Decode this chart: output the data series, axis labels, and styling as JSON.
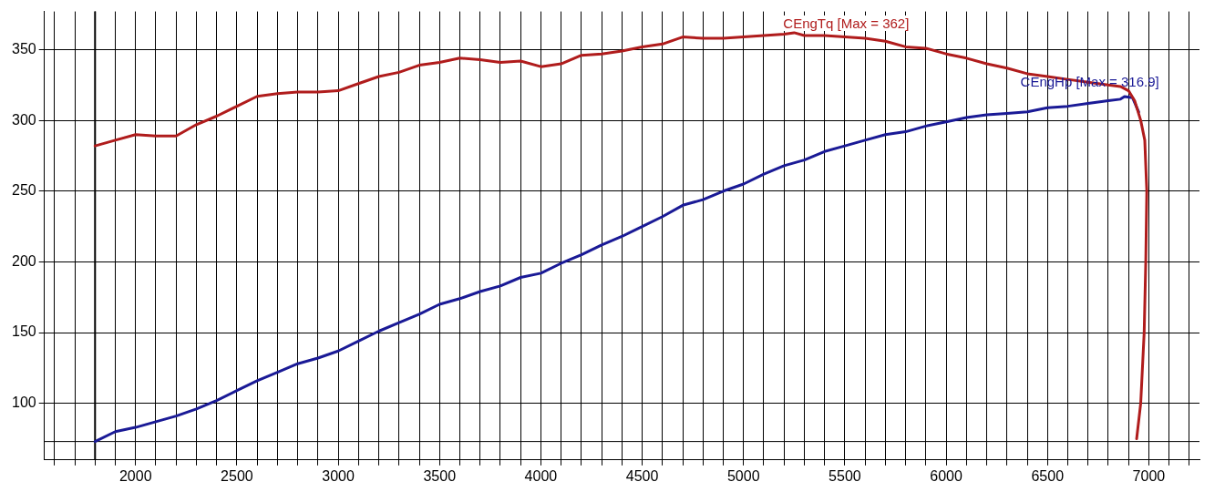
{
  "chart_data": {
    "type": "line",
    "xlim": [
      1550,
      7250
    ],
    "ylim": [
      60,
      377
    ],
    "xticks": [
      {
        "value": 1600,
        "label": null
      },
      {
        "value": 1700,
        "label": null
      },
      {
        "value": 1800,
        "label": null
      },
      {
        "value": 1900,
        "label": null
      },
      2000,
      {
        "value": 2100,
        "label": null
      },
      {
        "value": 2200,
        "label": null
      },
      {
        "value": 2300,
        "label": null
      },
      {
        "value": 2400,
        "label": null
      },
      2500,
      {
        "value": 2600,
        "label": null
      },
      {
        "value": 2700,
        "label": null
      },
      {
        "value": 2800,
        "label": null
      },
      {
        "value": 2900,
        "label": null
      },
      3000,
      {
        "value": 3100,
        "label": null
      },
      {
        "value": 3200,
        "label": null
      },
      {
        "value": 3300,
        "label": null
      },
      {
        "value": 3400,
        "label": null
      },
      3500,
      {
        "value": 3600,
        "label": null
      },
      {
        "value": 3700,
        "label": null
      },
      {
        "value": 3800,
        "label": null
      },
      {
        "value": 3900,
        "label": null
      },
      4000,
      {
        "value": 4100,
        "label": null
      },
      {
        "value": 4200,
        "label": null
      },
      {
        "value": 4300,
        "label": null
      },
      {
        "value": 4400,
        "label": null
      },
      4500,
      {
        "value": 4600,
        "label": null
      },
      {
        "value": 4700,
        "label": null
      },
      {
        "value": 4800,
        "label": null
      },
      {
        "value": 4900,
        "label": null
      },
      5000,
      {
        "value": 5100,
        "label": null
      },
      {
        "value": 5200,
        "label": null
      },
      {
        "value": 5300,
        "label": null
      },
      {
        "value": 5400,
        "label": null
      },
      5500,
      {
        "value": 5600,
        "label": null
      },
      {
        "value": 5700,
        "label": null
      },
      {
        "value": 5800,
        "label": null
      },
      {
        "value": 5900,
        "label": null
      },
      6000,
      {
        "value": 6100,
        "label": null
      },
      {
        "value": 6200,
        "label": null
      },
      {
        "value": 6300,
        "label": null
      },
      {
        "value": 6400,
        "label": null
      },
      6500,
      {
        "value": 6600,
        "label": null
      },
      {
        "value": 6700,
        "label": null
      },
      {
        "value": 6800,
        "label": null
      },
      {
        "value": 6900,
        "label": null
      },
      7000,
      {
        "value": 7100,
        "label": null
      },
      {
        "value": 7200,
        "label": null
      }
    ],
    "yticks": [
      100,
      150,
      200,
      250,
      300,
      350
    ],
    "grid": true,
    "legend": false,
    "marker": "none",
    "line_style": "solid",
    "ref_lines": [
      {
        "axis": "y",
        "value": 73,
        "color": "#000000"
      },
      {
        "axis": "x",
        "value": 1800,
        "color": "#000000"
      }
    ],
    "annotations": [
      {
        "text": "CEngTq [Max = 362]",
        "x": 5250,
        "y": 362
      },
      {
        "text": "CEngHp [Max = 316.9]",
        "x": 6880,
        "y": 316.9
      }
    ],
    "series": [
      {
        "color": "#b01c1c",
        "x": [
          1800,
          1900,
          2000,
          2100,
          2200,
          2300,
          2400,
          2500,
          2600,
          2700,
          2800,
          2900,
          3000,
          3100,
          3200,
          3300,
          3400,
          3500,
          3600,
          3700,
          3800,
          3900,
          4000,
          4100,
          4200,
          4300,
          4400,
          4500,
          4600,
          4700,
          4800,
          4900,
          5000,
          5100,
          5200,
          5250,
          5300,
          5400,
          5500,
          5600,
          5700,
          5800,
          5900,
          6000,
          6100,
          6200,
          6300,
          6400,
          6500,
          6600,
          6700,
          6800,
          6860,
          6900,
          6930,
          6960,
          6980,
          6990,
          6985,
          6977,
          6960,
          6940
        ],
        "values": [
          282,
          286,
          290,
          289,
          289,
          297,
          303,
          310,
          317,
          319,
          320,
          320,
          321,
          326,
          331,
          334,
          339,
          341,
          344,
          343,
          341,
          342,
          338,
          340,
          346,
          347,
          349,
          352,
          354,
          359,
          358,
          358,
          359,
          360,
          361,
          362,
          360,
          360,
          359,
          358,
          356,
          352,
          351,
          347,
          344,
          340,
          337,
          333,
          331,
          329,
          327,
          325,
          324,
          321,
          314,
          300,
          286,
          250,
          200,
          150,
          100,
          75
        ]
      },
      {
        "color": "#1a1a96",
        "x": [
          1800,
          1900,
          2000,
          2100,
          2200,
          2300,
          2400,
          2500,
          2600,
          2700,
          2800,
          2900,
          3000,
          3100,
          3200,
          3300,
          3400,
          3500,
          3600,
          3700,
          3800,
          3900,
          4000,
          4100,
          4200,
          4300,
          4400,
          4500,
          4600,
          4700,
          4800,
          4900,
          5000,
          5100,
          5200,
          5300,
          5400,
          5500,
          5600,
          5700,
          5800,
          5900,
          6000,
          6100,
          6200,
          6300,
          6400,
          6500,
          6600,
          6700,
          6800,
          6860,
          6880,
          6920,
          6950
        ],
        "values": [
          73,
          80,
          83,
          87,
          91,
          96,
          102,
          109,
          116,
          122,
          128,
          132,
          137,
          144,
          151,
          157,
          163,
          170,
          174,
          179,
          183,
          189,
          192,
          199,
          205,
          212,
          218,
          225,
          232,
          240,
          244,
          250,
          255,
          262,
          268,
          272,
          278,
          282,
          286,
          290,
          292,
          296,
          299,
          302,
          304,
          305,
          306,
          309,
          310,
          312,
          314,
          315,
          316.9,
          316,
          306
        ]
      }
    ]
  }
}
